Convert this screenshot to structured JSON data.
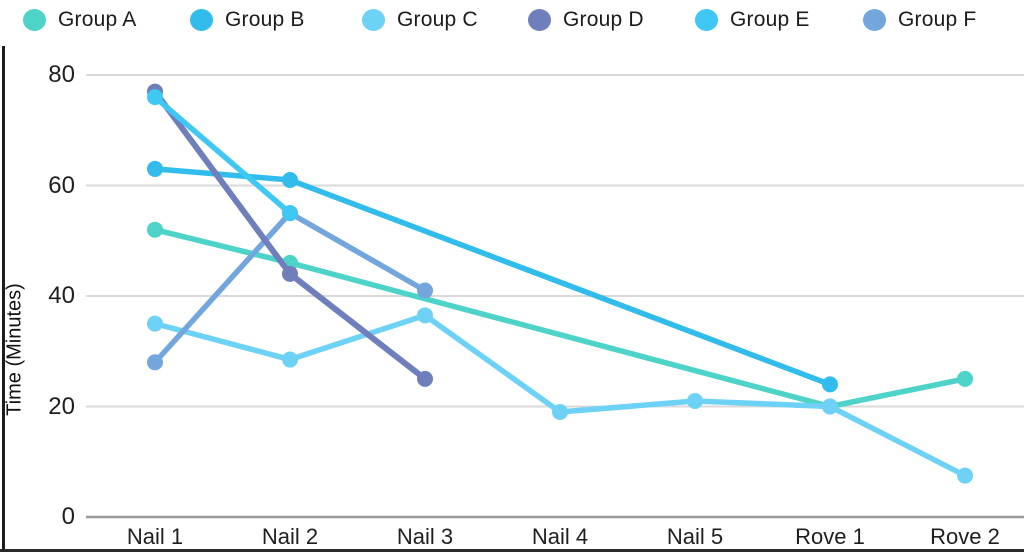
{
  "chart_data": {
    "type": "line",
    "title": "",
    "xlabel": "",
    "ylabel": "Time (Minutes)",
    "categories": [
      "Nail 1",
      "Nail 2",
      "Nail 3",
      "Nail 4",
      "Nail 5",
      "Rove 1",
      "Rove 2"
    ],
    "series": [
      {
        "name": "Group A",
        "color": "#4ED3C9",
        "values": [
          52,
          46,
          null,
          null,
          null,
          20,
          25
        ]
      },
      {
        "name": "Group B",
        "color": "#31BCEC",
        "values": [
          63,
          61,
          null,
          null,
          null,
          24,
          null
        ]
      },
      {
        "name": "Group C",
        "color": "#6DD2F6",
        "values": [
          35,
          28.5,
          36.5,
          19,
          21,
          20,
          7.5
        ]
      },
      {
        "name": "Group D",
        "color": "#6F7FBC",
        "values": [
          77,
          44,
          25,
          null,
          null,
          null,
          null
        ]
      },
      {
        "name": "Group E",
        "color": "#3FC8F4",
        "values": [
          76,
          55,
          null,
          null,
          null,
          null,
          null
        ]
      },
      {
        "name": "Group F",
        "color": "#72A6DD",
        "values": [
          28,
          55,
          41,
          null,
          null,
          null,
          null
        ]
      }
    ],
    "ylim": [
      0,
      80
    ],
    "yticks": [
      0,
      20,
      40,
      60,
      80
    ],
    "grid": true,
    "legend_position": "top",
    "grid_color": "#d9d9d9",
    "axis_line_color": "#999999",
    "tick_text_color": "#1f1f1f"
  }
}
